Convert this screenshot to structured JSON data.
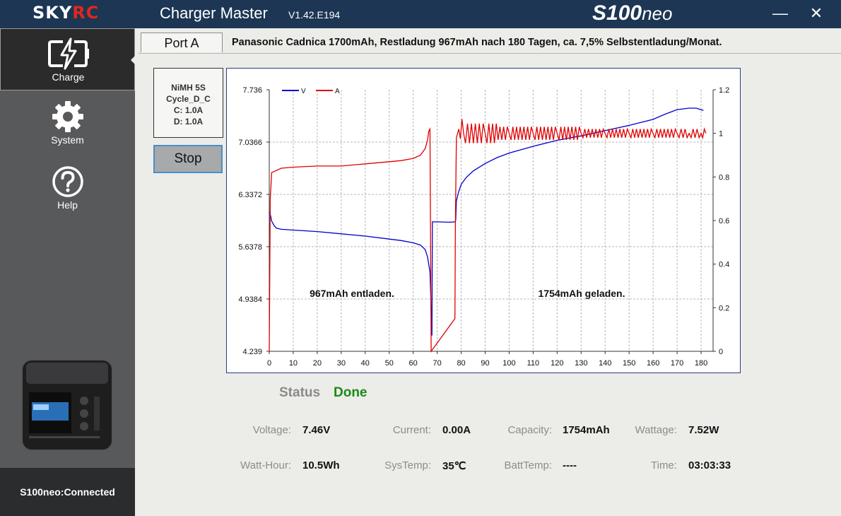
{
  "titlebar": {
    "logo_sky": "SKY",
    "logo_rc": "RC",
    "app_title": "Charger Master",
    "version": "V1.42.E194",
    "model_main": "S100",
    "model_suffix": "neo",
    "minimize": "—",
    "close": "✕"
  },
  "sidebar": {
    "items": [
      {
        "label": "Charge",
        "icon": "charge-icon"
      },
      {
        "label": "System",
        "icon": "gear-icon"
      },
      {
        "label": "Help",
        "icon": "help-icon"
      }
    ],
    "connection_status": "S100neo:Connected"
  },
  "port": {
    "tab_label": "Port A",
    "info": "Panasonic Cadnica 1700mAh, Restladung 967mAh nach 180 Tagen, ca. 7,5% Selbstentladung/Monat."
  },
  "program": {
    "lines": [
      "NiMH 5S",
      "Cycle_D_C",
      "C: 1.0A",
      "D: 1.0A"
    ],
    "stop_label": "Stop"
  },
  "chart_data": {
    "type": "line",
    "x_range": [
      0,
      185
    ],
    "x_ticks": [
      "0",
      "10",
      "20",
      "30",
      "40",
      "50",
      "60",
      "70",
      "80",
      "90",
      "100",
      "110",
      "120",
      "130",
      "140",
      "150",
      "160",
      "170",
      "180"
    ],
    "y_left_range": [
      4.239,
      7.736
    ],
    "y_left_ticks": [
      "4.239",
      "4.9384",
      "5.6378",
      "6.3372",
      "7.0366",
      "7.736"
    ],
    "y_right_range": [
      0,
      1.2
    ],
    "y_right_ticks": [
      "0",
      "0.2",
      "0.4",
      "0.6",
      "0.8",
      "1",
      "1.2"
    ],
    "grid": true,
    "legend_placement": "top-left",
    "annotations": [
      "967mAh entladen.",
      "1754mAh geladen."
    ],
    "series": [
      {
        "name": "V",
        "color": "#0000cc",
        "axis": "left",
        "x": [
          0,
          0.5,
          1,
          2,
          3,
          5,
          10,
          20,
          30,
          40,
          50,
          55,
          60,
          63,
          65,
          66,
          67,
          67.5,
          67.8,
          68,
          70,
          75,
          77.5,
          77.7,
          78,
          79,
          80,
          82,
          85,
          90,
          95,
          100,
          110,
          120,
          130,
          140,
          150,
          160,
          165,
          170,
          175,
          178,
          181
        ],
        "y": [
          6.1,
          6.06,
          5.98,
          5.92,
          5.885,
          5.87,
          5.86,
          5.84,
          5.81,
          5.78,
          5.74,
          5.72,
          5.69,
          5.66,
          5.6,
          5.5,
          5.3,
          4.8,
          4.45,
          5.97,
          5.97,
          5.965,
          5.97,
          5.99,
          6.25,
          6.38,
          6.47,
          6.56,
          6.65,
          6.75,
          6.83,
          6.89,
          6.98,
          7.06,
          7.12,
          7.19,
          7.26,
          7.34,
          7.41,
          7.47,
          7.49,
          7.49,
          7.46
        ]
      },
      {
        "name": "A",
        "color": "#e00000",
        "axis": "right",
        "x": [
          0,
          0.4,
          1,
          5,
          10,
          20,
          30,
          40,
          50,
          55,
          60,
          63,
          65,
          66,
          66.5,
          67,
          67.2,
          67.5,
          77.4,
          77.6,
          78,
          79,
          81,
          90,
          100,
          110,
          120,
          130,
          140,
          150,
          160,
          170,
          175,
          180,
          182
        ],
        "y": [
          0.0,
          0.7,
          0.82,
          0.84,
          0.845,
          0.85,
          0.85,
          0.86,
          0.87,
          0.875,
          0.885,
          0.9,
          0.93,
          0.97,
          1.01,
          1.02,
          0.6,
          0.0,
          0.15,
          0.6,
          0.98,
          1.02,
          1.0,
          1.0,
          1.0,
          1.0,
          1.0,
          1.0,
          1.0,
          1.0,
          1.0,
          1.0,
          1.0,
          1.0,
          1.0
        ]
      }
    ]
  },
  "status": {
    "label": "Status",
    "value": "Done"
  },
  "metrics": [
    {
      "label": "Voltage:",
      "value": "7.46V"
    },
    {
      "label": "Current:",
      "value": "0.00A"
    },
    {
      "label": "Capacity:",
      "value": "1754mAh"
    },
    {
      "label": "Wattage:",
      "value": "7.52W"
    },
    {
      "label": "Watt-Hour:",
      "value": "10.5Wh"
    },
    {
      "label": "SysTemp:",
      "value": "35℃"
    },
    {
      "label": "BattTemp:",
      "value": "----"
    },
    {
      "label": "Time:",
      "value": "03:03:33"
    }
  ],
  "colors": {
    "titlebar": "#1c3654",
    "sidebar": "#58595b",
    "status_done": "#1a8a1a",
    "voltage_line": "#0000cc",
    "current_line": "#e00000"
  }
}
